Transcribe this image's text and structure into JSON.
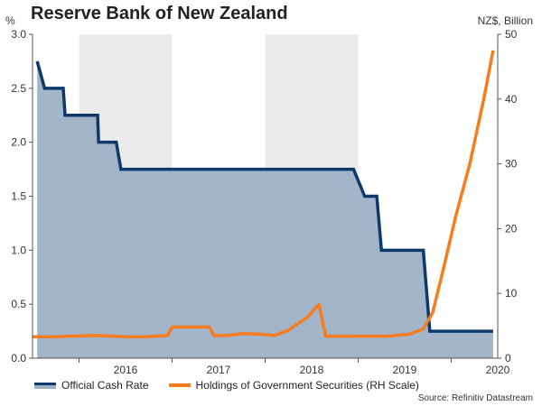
{
  "chart_data": {
    "type": "line",
    "title": "Reserve Bank of New Zealand",
    "left_axis": {
      "unit": "%",
      "range": [
        0,
        3.0
      ],
      "ticks": [
        "0.0",
        "0.5",
        "1.0",
        "1.5",
        "2.0",
        "2.5",
        "3.0"
      ]
    },
    "right_axis": {
      "unit": "NZ$, Billion",
      "range": [
        0,
        50
      ],
      "ticks": [
        "0",
        "10",
        "20",
        "30",
        "40",
        "50"
      ]
    },
    "x_axis": {
      "range": [
        2015.5,
        2020.5
      ],
      "year_labels": [
        "2016",
        "2017",
        "2018",
        "2019",
        "2020"
      ]
    },
    "shaded_years": [
      [
        2016.0,
        2017.0
      ],
      [
        2018.0,
        2019.0
      ]
    ],
    "series": [
      {
        "name": "Official Cash Rate",
        "axis": "left",
        "style": "step-area",
        "color": "#0d3a6b",
        "fill": "#9aafc4",
        "points": [
          [
            2015.55,
            2.75
          ],
          [
            2015.63,
            2.5
          ],
          [
            2015.83,
            2.5
          ],
          [
            2015.85,
            2.25
          ],
          [
            2016.2,
            2.25
          ],
          [
            2016.21,
            2.0
          ],
          [
            2016.4,
            2.0
          ],
          [
            2016.45,
            1.75
          ],
          [
            2018.95,
            1.75
          ],
          [
            2019.07,
            1.5
          ],
          [
            2019.2,
            1.5
          ],
          [
            2019.25,
            1.0
          ],
          [
            2019.7,
            1.0
          ],
          [
            2019.77,
            0.25
          ],
          [
            2020.45,
            0.25
          ]
        ]
      },
      {
        "name": "Holdings of Government Securities (RH Scale)",
        "axis": "right",
        "style": "line",
        "color": "#f57c1f",
        "points": [
          [
            2015.5,
            3.3
          ],
          [
            2015.7,
            3.3
          ],
          [
            2015.9,
            3.4
          ],
          [
            2016.2,
            3.5
          ],
          [
            2016.5,
            3.3
          ],
          [
            2016.7,
            3.3
          ],
          [
            2016.95,
            3.5
          ],
          [
            2017.0,
            4.8
          ],
          [
            2017.4,
            4.8
          ],
          [
            2017.45,
            3.5
          ],
          [
            2017.6,
            3.5
          ],
          [
            2017.75,
            3.8
          ],
          [
            2017.95,
            3.7
          ],
          [
            2018.1,
            3.5
          ],
          [
            2018.25,
            4.3
          ],
          [
            2018.45,
            6.3
          ],
          [
            2018.58,
            8.3
          ],
          [
            2018.65,
            3.4
          ],
          [
            2019.0,
            3.4
          ],
          [
            2019.3,
            3.4
          ],
          [
            2019.55,
            3.7
          ],
          [
            2019.7,
            4.5
          ],
          [
            2019.8,
            7.0
          ],
          [
            2019.92,
            14.0
          ],
          [
            2020.05,
            22.0
          ],
          [
            2020.2,
            30.0
          ],
          [
            2020.35,
            40.0
          ],
          [
            2020.45,
            47.5
          ]
        ]
      }
    ],
    "legend": {
      "placement": "bottom-left"
    },
    "source": "Source: Refinitiv Datastream"
  }
}
